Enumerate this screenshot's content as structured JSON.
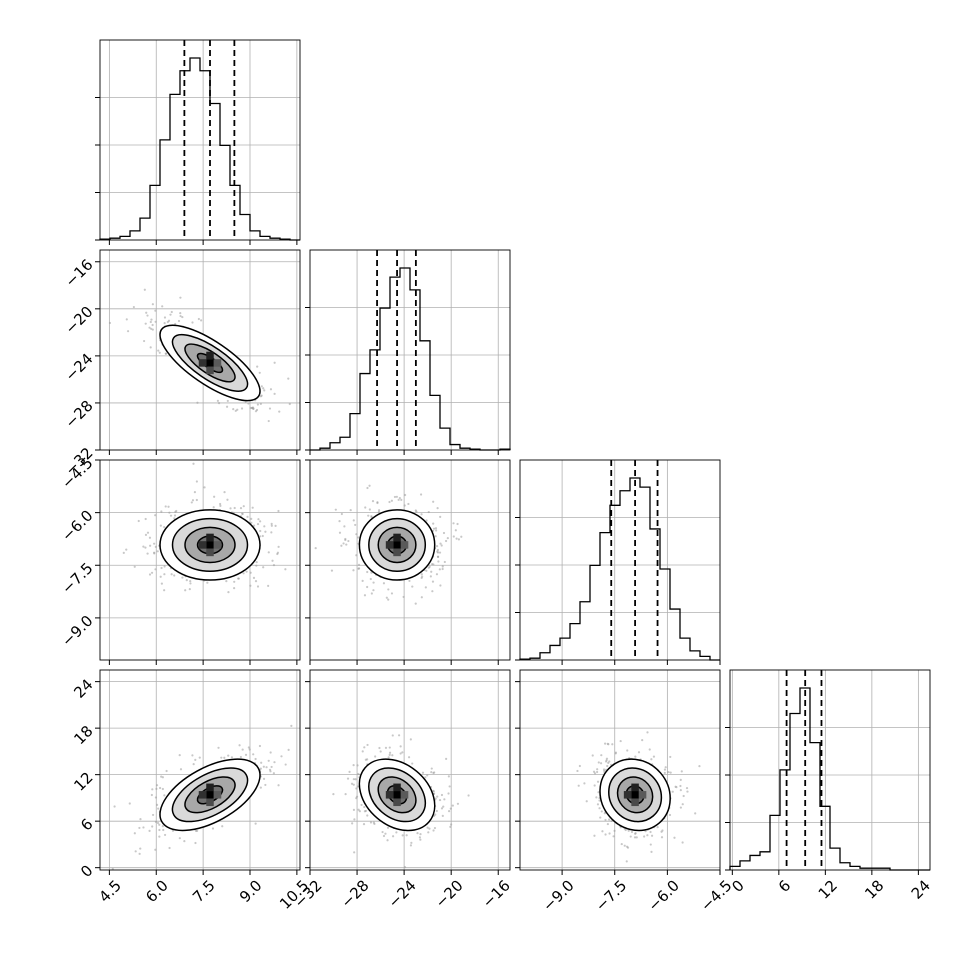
{
  "chart_data": {
    "type": "corner",
    "parameters": [
      {
        "ticks": [
          "4.5",
          "6.0",
          "7.5",
          "9.0",
          "10.5"
        ],
        "range": [
          4.2,
          10.6
        ],
        "quantiles": [
          6.9,
          7.72,
          8.5
        ]
      },
      {
        "ticks": [
          "-32",
          "-28",
          "-24",
          "-20",
          "-16"
        ],
        "range": [
          -32.0,
          -15.0
        ],
        "quantiles": [
          -26.3,
          -24.6,
          -23.0
        ]
      },
      {
        "ticks": [
          "-9.0",
          "-7.5",
          "-6.0",
          "-4.5"
        ],
        "range": [
          -10.2,
          -4.5
        ],
        "quantiles": [
          -7.6,
          -6.92,
          -6.28
        ]
      },
      {
        "ticks": [
          "0",
          "6",
          "12",
          "18",
          "24"
        ],
        "range": [
          -0.3,
          25.5
        ],
        "quantiles": [
          7.0,
          9.4,
          11.5
        ]
      }
    ],
    "y_ticks": {
      "1": [
        "-16",
        "-20",
        "-24",
        "-28",
        "-32"
      ],
      "2": [
        "-4.5",
        "-6.0",
        "-7.5",
        "-9.0"
      ],
      "3": [
        "24",
        "18",
        "12",
        "6",
        "0"
      ]
    },
    "histograms": [
      {
        "bins_start": 4.2,
        "bin_width": 0.32,
        "heights": [
          0.005,
          0.01,
          0.02,
          0.05,
          0.12,
          0.3,
          0.55,
          0.8,
          0.93,
          1.0,
          0.93,
          0.75,
          0.52,
          0.3,
          0.14,
          0.05,
          0.02,
          0.01,
          0.005,
          0.0
        ]
      },
      {
        "bins_start": -32.0,
        "bin_width": 0.85,
        "heights": [
          0.0,
          0.01,
          0.04,
          0.07,
          0.2,
          0.42,
          0.55,
          0.78,
          0.95,
          1.0,
          0.88,
          0.6,
          0.3,
          0.12,
          0.03,
          0.01,
          0.005,
          0.0,
          0.0,
          0.005
        ]
      },
      {
        "bins_start": -10.2,
        "bin_width": 0.285,
        "heights": [
          0.005,
          0.01,
          0.04,
          0.08,
          0.12,
          0.2,
          0.32,
          0.52,
          0.7,
          0.85,
          0.93,
          1.0,
          0.95,
          0.72,
          0.5,
          0.28,
          0.12,
          0.05,
          0.02,
          0.0
        ]
      },
      {
        "bins_start": -0.3,
        "bin_width": 1.29,
        "heights": [
          0.02,
          0.05,
          0.08,
          0.1,
          0.3,
          0.55,
          0.86,
          1.0,
          0.7,
          0.35,
          0.12,
          0.04,
          0.02,
          0.01,
          0.01,
          0.01,
          0.0,
          0.0,
          0.0,
          0.0
        ]
      }
    ],
    "pairs": [
      {
        "row": 1,
        "col": 0,
        "mean": [
          7.72,
          -24.6
        ],
        "sd": [
          0.8,
          1.6
        ],
        "rho": -0.75
      },
      {
        "row": 2,
        "col": 0,
        "mean": [
          7.72,
          -6.92
        ],
        "sd": [
          0.8,
          0.5
        ],
        "rho": 0.0
      },
      {
        "row": 2,
        "col": 1,
        "mean": [
          -24.6,
          -6.92
        ],
        "sd": [
          1.6,
          0.5
        ],
        "rho": 0.0
      },
      {
        "row": 3,
        "col": 0,
        "mean": [
          7.72,
          9.4
        ],
        "sd": [
          0.8,
          2.3
        ],
        "rho": 0.55
      },
      {
        "row": 3,
        "col": 1,
        "mean": [
          -24.6,
          9.4
        ],
        "sd": [
          1.6,
          2.3
        ],
        "rho": -0.3
      },
      {
        "row": 3,
        "col": 2,
        "mean": [
          -6.92,
          9.4
        ],
        "sd": [
          0.5,
          2.3
        ],
        "rho": -0.1
      }
    ],
    "contour_levels_sigma": [
      0.5,
      1.0,
      1.5,
      2.0
    ],
    "grid": true,
    "colors": {
      "line": "#000000",
      "grid": "#b0b0b0",
      "points": "#9a9a9a",
      "density": [
        "#d9d9d9",
        "#a8a8a8",
        "#6e6e6e",
        "#303030",
        "#000000"
      ]
    }
  }
}
